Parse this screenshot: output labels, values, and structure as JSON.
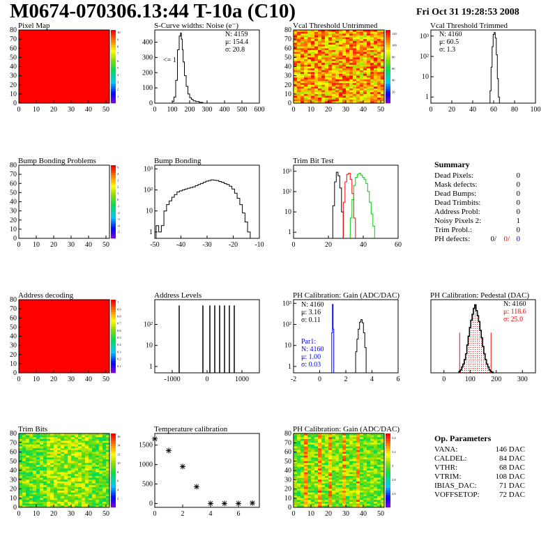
{
  "header": {
    "title": "M0674-070306.13:44 T-10a (C10)",
    "date": "Fri Oct 31 19:28:53 2008"
  },
  "colors": {
    "hist_line": "#000000",
    "red_series": "#ff0000",
    "green_series": "#00cc00",
    "blue_series": "#0000ff",
    "map_fill": "#ff0000"
  },
  "chart_data": [
    {
      "id": "pixel-map",
      "type": "heatmap",
      "title": "Pixel Map",
      "xlim": [
        0,
        52
      ],
      "ylim": [
        0,
        80
      ],
      "xticks": [
        0,
        10,
        20,
        30,
        40,
        50
      ],
      "yticks": [
        0,
        10,
        20,
        30,
        40,
        50,
        60,
        70,
        80
      ],
      "fill": "uniform",
      "fill_value": 10,
      "palette_ticks": [
        "1",
        "2",
        "3",
        "4",
        "5",
        "6",
        "7",
        "8",
        "9",
        "10"
      ]
    },
    {
      "id": "scurve-widths",
      "type": "line",
      "title": "S-Curve widths: Noise (e⁻)",
      "xlim": [
        0,
        600
      ],
      "ylim": [
        0,
        480
      ],
      "xticks": [
        0,
        100,
        200,
        300,
        400,
        500,
        600
      ],
      "yticks": [
        0,
        100,
        200,
        300,
        400
      ],
      "stats": [
        "N: 4159",
        "μ: 154.4",
        "σ: 20.8"
      ],
      "annotation": "<= 1",
      "x": [
        95,
        105,
        115,
        125,
        135,
        145,
        150,
        155,
        160,
        165,
        175,
        185,
        195,
        205,
        215,
        225,
        245,
        265,
        285
      ],
      "y": [
        0,
        10,
        40,
        150,
        350,
        440,
        460,
        420,
        350,
        270,
        180,
        110,
        60,
        35,
        25,
        15,
        10,
        5,
        0
      ]
    },
    {
      "id": "vcal-untrimmed",
      "type": "heatmap",
      "title": "Vcal Threshold Untrimmed",
      "xlim": [
        0,
        52
      ],
      "ylim": [
        0,
        80
      ],
      "xticks": [
        0,
        10,
        20,
        30,
        40,
        50
      ],
      "yticks": [
        0,
        10,
        20,
        30,
        40,
        50,
        60,
        70,
        80
      ],
      "fill": "random-warm",
      "palette_ticks": [
        "20",
        "40",
        "60",
        "80",
        "100",
        "120"
      ]
    },
    {
      "id": "vcal-trimmed",
      "type": "line",
      "title": "Vcal Threshold Trimmed",
      "scale": "log",
      "xlim": [
        0,
        100
      ],
      "ylim": [
        0.5,
        2000
      ],
      "xticks": [
        0,
        20,
        40,
        60,
        80,
        100
      ],
      "yticks": [
        1,
        10,
        100,
        1000
      ],
      "ytick_labels": [
        "1",
        "10",
        "10²",
        "10³"
      ],
      "stats": [
        "N: 4160",
        "μ: 60.5",
        "σ:  1.3"
      ],
      "x": [
        56,
        57,
        58,
        59,
        60,
        61,
        62,
        63,
        64,
        65,
        66
      ],
      "y": [
        0.5,
        2,
        30,
        300,
        1200,
        1500,
        800,
        120,
        8,
        1,
        0.5
      ]
    },
    {
      "id": "bump-problems",
      "type": "heatmap",
      "title": "Bump Bonding Problems",
      "xlim": [
        0,
        52
      ],
      "ylim": [
        0,
        80
      ],
      "xticks": [
        0,
        10,
        20,
        30,
        40,
        50
      ],
      "yticks": [
        0,
        10,
        20,
        30,
        40,
        50,
        60,
        70,
        80
      ],
      "fill": "empty",
      "palette_ticks": [
        "-5",
        "-4",
        "-3",
        "-2",
        "-1",
        "0",
        "1",
        "2",
        "3",
        "4",
        "5"
      ]
    },
    {
      "id": "bump-bonding",
      "type": "line",
      "title": "Bump Bonding",
      "scale": "log",
      "xlim": [
        -50,
        -10
      ],
      "ylim": [
        0.5,
        1500
      ],
      "xticks": [
        -50,
        -40,
        -30,
        -20,
        -10
      ],
      "yticks": [
        1,
        10,
        100,
        1000
      ],
      "ytick_labels": [
        "1",
        "10",
        "10²",
        "10³"
      ],
      "x": [
        -50,
        -49,
        -48,
        -47,
        -46,
        -45,
        -44,
        -43,
        -42,
        -41,
        -40,
        -39,
        -38,
        -37,
        -36,
        -35,
        -34,
        -33,
        -32,
        -31,
        -30,
        -29,
        -28,
        -27,
        -26,
        -25,
        -24,
        -23,
        -22,
        -21,
        -20,
        -19,
        -18,
        -17,
        -16,
        -15,
        -14,
        -13
      ],
      "y": [
        0.5,
        2,
        1,
        2,
        10,
        20,
        30,
        45,
        60,
        80,
        90,
        100,
        110,
        120,
        130,
        140,
        160,
        180,
        200,
        230,
        260,
        280,
        300,
        290,
        280,
        250,
        230,
        200,
        180,
        150,
        110,
        70,
        40,
        20,
        8,
        3,
        1,
        0.5
      ]
    },
    {
      "id": "trim-bit-test",
      "type": "line",
      "title": "Trim Bit Test",
      "scale": "log",
      "xlim": [
        0,
        60
      ],
      "ylim": [
        0.5,
        2000
      ],
      "xticks": [
        0,
        20,
        40,
        60
      ],
      "yticks": [
        1,
        10,
        100,
        1000
      ],
      "ytick_labels": [
        "1",
        "10",
        "10²",
        "10³"
      ],
      "series": [
        {
          "color": "#000000",
          "x": [
            22,
            23,
            24,
            25,
            26,
            27,
            28,
            29
          ],
          "y": [
            0.5,
            20,
            300,
            900,
            600,
            150,
            10,
            0.5
          ]
        },
        {
          "color": "#ff0000",
          "x": [
            28,
            29,
            30,
            31,
            32,
            33,
            34,
            35,
            36
          ],
          "y": [
            0.5,
            30,
            300,
            700,
            800,
            400,
            80,
            5,
            0.5
          ]
        },
        {
          "color": "#00cc00",
          "x": [
            32,
            33,
            34,
            35,
            36,
            37,
            38,
            39,
            40,
            41,
            42,
            43,
            44,
            45,
            46,
            47
          ],
          "y": [
            0.5,
            5,
            40,
            200,
            500,
            700,
            800,
            650,
            500,
            400,
            250,
            100,
            30,
            8,
            2,
            0.5
          ]
        }
      ]
    },
    {
      "id": "address-decoding",
      "type": "heatmap",
      "title": "Address decoding",
      "xlim": [
        0,
        52
      ],
      "ylim": [
        0,
        80
      ],
      "xticks": [
        0,
        10,
        20,
        30,
        40,
        50
      ],
      "yticks": [
        0,
        10,
        20,
        30,
        40,
        50,
        60,
        70,
        80
      ],
      "fill": "uniform",
      "fill_value": 1,
      "palette_ticks": [
        "0.1",
        "0.2",
        "0.3",
        "0.4",
        "0.5",
        "0.6",
        "0.7",
        "0.8",
        "0.9",
        "1"
      ]
    },
    {
      "id": "address-levels",
      "type": "line",
      "title": "Address Levels",
      "scale": "log",
      "xlim": [
        -1500,
        1500
      ],
      "ylim": [
        0.5,
        1500
      ],
      "xticks": [
        -1000,
        0,
        1000
      ],
      "yticks": [
        1,
        10,
        100
      ],
      "ytick_labels": [
        "1",
        "10",
        "10²"
      ],
      "peaks": [
        -800,
        -120,
        80,
        220,
        360,
        500,
        640,
        780
      ],
      "peak_value": 800
    },
    {
      "id": "ph-gain",
      "type": "line",
      "title": "PH Calibration: Gain (ADC/DAC)",
      "scale": "log",
      "xlim": [
        -2,
        6
      ],
      "ylim": [
        0.5,
        1500
      ],
      "xticks": [
        -2,
        0,
        2,
        4,
        6
      ],
      "yticks": [
        1,
        10,
        100,
        1000
      ],
      "ytick_labels": [
        "1",
        "10",
        "10²",
        "10³"
      ],
      "stats": [
        "N: 4160",
        "μ: 3.16",
        "σ: 0.11"
      ],
      "par_stats": [
        "Par1:",
        "N: 4160",
        "μ: 1.00",
        "σ: 0.03"
      ],
      "series": [
        {
          "color": "#0000ff",
          "x": [
            0.9,
            0.95,
            1.0,
            1.05,
            1.1
          ],
          "y": [
            0.5,
            40,
            900,
            60,
            0.5
          ]
        },
        {
          "color": "#000000",
          "x": [
            2.7,
            2.8,
            2.9,
            3.0,
            3.1,
            3.2,
            3.3,
            3.4,
            3.5,
            3.6
          ],
          "y": [
            0.5,
            5,
            20,
            60,
            130,
            170,
            120,
            40,
            8,
            0.5
          ]
        }
      ]
    },
    {
      "id": "ph-pedestal",
      "type": "line",
      "title": "PH Calibration: Pedestal (DAC)",
      "xlim": [
        -50,
        350
      ],
      "ylim": [
        0,
        100
      ],
      "xticks": [
        0,
        100,
        200,
        300
      ],
      "stats_black": "N: 4160",
      "stats_red": [
        "μ: 118.6",
        "σ: 25.0"
      ],
      "x": [
        55,
        60,
        65,
        70,
        75,
        80,
        85,
        90,
        95,
        100,
        105,
        110,
        115,
        120,
        125,
        130,
        135,
        140,
        145,
        150,
        155,
        160,
        165,
        170,
        175,
        180,
        185,
        190
      ],
      "y": [
        1,
        2,
        4,
        8,
        12,
        18,
        26,
        38,
        50,
        62,
        72,
        80,
        88,
        93,
        85,
        78,
        70,
        58,
        48,
        36,
        26,
        18,
        12,
        8,
        4,
        2,
        1,
        0
      ],
      "red_lines": [
        60,
        180
      ]
    },
    {
      "id": "trim-bits",
      "type": "heatmap",
      "title": "Trim Bits",
      "xlim": [
        0,
        52
      ],
      "ylim": [
        0,
        80
      ],
      "xticks": [
        0,
        10,
        20,
        30,
        40,
        50
      ],
      "yticks": [
        0,
        10,
        20,
        30,
        40,
        50,
        60,
        70,
        80
      ],
      "fill": "random-mid",
      "palette_ticks": [
        "2",
        "4",
        "6",
        "8",
        "10",
        "12",
        "14",
        "16"
      ]
    },
    {
      "id": "temperature-calibration",
      "type": "scatter",
      "title": "Temperature calibration",
      "xlim": [
        0,
        7.5
      ],
      "ylim": [
        -100,
        1800
      ],
      "xticks": [
        0,
        2,
        4,
        6
      ],
      "yticks": [
        0,
        500,
        1000,
        1500
      ],
      "x": [
        0,
        1,
        2,
        3,
        4,
        5,
        6,
        7
      ],
      "y": [
        1660,
        1360,
        950,
        430,
        0,
        0,
        0,
        10
      ]
    },
    {
      "id": "ph-gain-map",
      "type": "heatmap",
      "title": "PH Calibration: Gain (ADC/DAC)",
      "xlim": [
        0,
        52
      ],
      "ylim": [
        0,
        80
      ],
      "xticks": [
        0,
        10,
        20,
        30,
        40,
        50
      ],
      "yticks": [
        0,
        10,
        20,
        30,
        40,
        50,
        60,
        70,
        80
      ],
      "fill": "striped",
      "palette_ticks": [
        "2.6",
        "2.8",
        "3",
        "3.2",
        "3.4"
      ]
    }
  ],
  "summary": {
    "title": "Summary",
    "rows": [
      {
        "label": "Dead Pixels:",
        "value": "0"
      },
      {
        "label": "Mask defects:",
        "value": "0"
      },
      {
        "label": "Dead Bumps:",
        "value": "0"
      },
      {
        "label": "Dead Trimbits:",
        "value": "0"
      },
      {
        "label": "Address Probl:",
        "value": "0"
      },
      {
        "label": "Noisy Pixels 2:",
        "value": "1"
      },
      {
        "label": "Trim Probl.:",
        "value": "0"
      }
    ],
    "ph_defects": {
      "label": "PH defects:",
      "v1": "0/",
      "v2": "0/",
      "v3": "0"
    }
  },
  "op_params": {
    "title": "Op. Parameters",
    "rows": [
      {
        "label": "VANA:",
        "value": "146 DAC"
      },
      {
        "label": "CALDEL:",
        "value": "84 DAC"
      },
      {
        "label": "VTHR:",
        "value": "68 DAC"
      },
      {
        "label": "VTRIM:",
        "value": "108 DAC"
      },
      {
        "label": "IBIAS_DAC:",
        "value": "71 DAC"
      },
      {
        "label": "VOFFSETOP:",
        "value": "72 DAC"
      }
    ]
  }
}
